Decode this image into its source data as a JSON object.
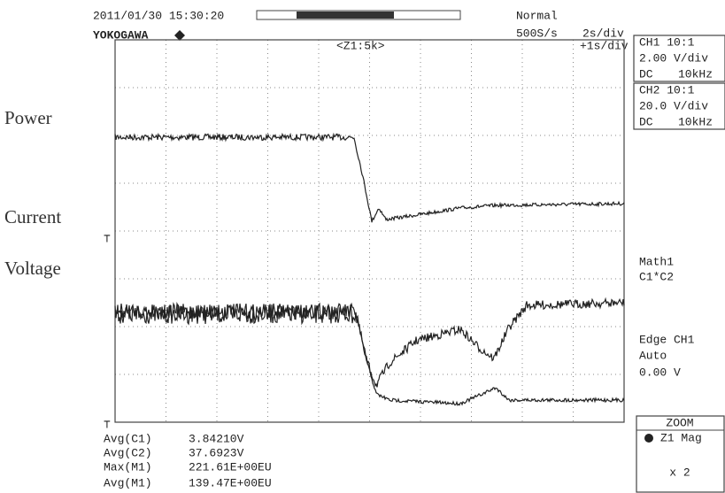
{
  "header": {
    "timestamp": "2011/01/30 15:30:20",
    "brand": "YOKOGAWA",
    "trigger_mode": "Normal",
    "sample_rate": "500S/s",
    "timebase": "2s/div",
    "zoom_label": "<Z1:5k>",
    "zoom_timebase": "+1s/div"
  },
  "trace_labels": [
    "Power",
    "Current",
    "Voltage"
  ],
  "channels": [
    {
      "name": "CH1 10:1",
      "scale": "2.00 V/div",
      "coupling": "DC",
      "bandwidth": "10kHz"
    },
    {
      "name": "CH2 10:1",
      "scale": "20.0 V/div",
      "coupling": "DC",
      "bandwidth": "10kHz"
    }
  ],
  "math": {
    "name": "Math1",
    "expr": "C1*C2"
  },
  "trigger": {
    "source": "Edge CH1",
    "mode": "Auto",
    "level": "0.00 V"
  },
  "zoom": {
    "title": "ZOOM",
    "name": "Z1 Mag",
    "factor": "x 2"
  },
  "measurements": [
    {
      "label": "Avg(C1)",
      "value": "3.84210V"
    },
    {
      "label": "Avg(C2)",
      "value": "37.6923V"
    },
    {
      "label": "Max(M1)",
      "value": "221.61E+00EU"
    },
    {
      "label": "Avg(M1)",
      "value": "139.47E+00EU"
    }
  ]
}
